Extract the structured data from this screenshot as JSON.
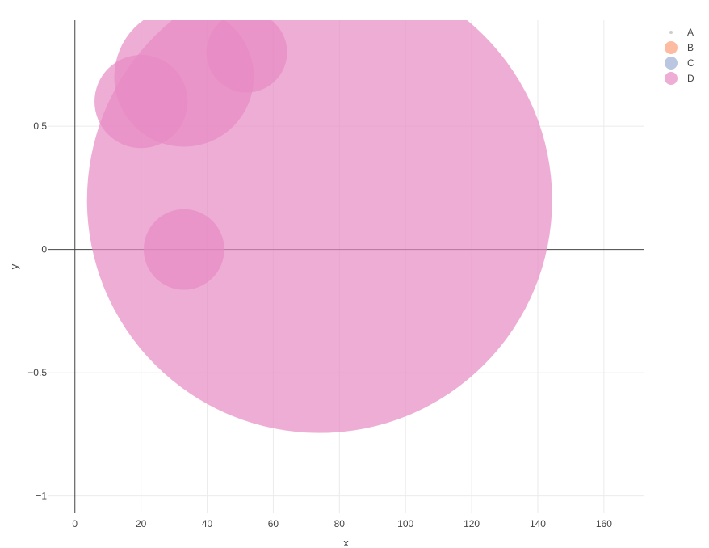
{
  "chart_data": {
    "type": "scatter",
    "xlabel": "x",
    "ylabel": "y",
    "xlim": [
      -8,
      172
    ],
    "ylim": [
      -1.07,
      0.93
    ],
    "x_ticks": [
      0,
      20,
      40,
      60,
      80,
      100,
      120,
      140,
      160
    ],
    "y_ticks": [
      -1,
      -0.5,
      0,
      0.5
    ],
    "y_tick_labels": [
      "−1",
      "−0.5",
      "0",
      "0.5"
    ],
    "grid": true,
    "legend_position": "top-right",
    "series": [
      {
        "name": "A",
        "color": "#aaaaaa",
        "opacity": 0.6,
        "points": []
      },
      {
        "name": "B",
        "color": "#fc8d62",
        "opacity": 0.6,
        "points": []
      },
      {
        "name": "C",
        "color": "#8da0cb",
        "opacity": 0.6,
        "points": []
      },
      {
        "name": "D",
        "color": "#e78ac3",
        "opacity": 0.7,
        "points": [
          {
            "x": 74,
            "y": 0.2,
            "size": 100
          },
          {
            "x": 33,
            "y": 0.7,
            "size": 9
          },
          {
            "x": 20,
            "y": 0.6,
            "size": 4
          },
          {
            "x": 52,
            "y": 0.8,
            "size": 3
          },
          {
            "x": 33,
            "y": 0.0,
            "size": 3
          }
        ]
      }
    ]
  }
}
